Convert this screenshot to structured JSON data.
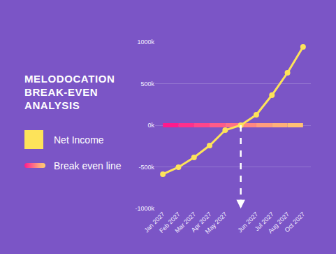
{
  "chart_data": {
    "type": "line",
    "title": "MELODOCATION BREAK-EVEN ANALYSIS",
    "categories": [
      "Jan 2027",
      "Feb 2027",
      "Mar 2027",
      "Apr 2027",
      "May 2027",
      null,
      "Jun 2027",
      "Jul 2027",
      "Aug 2027",
      "Oct 2027"
    ],
    "series": [
      {
        "name": "Net Income",
        "color": "#fde35a",
        "marker": "circle",
        "values": [
          -588000,
          -504000,
          -387000,
          -244000,
          -59000,
          0,
          126000,
          361000,
          630000,
          941000
        ]
      },
      {
        "name": "Break even line",
        "line_style": "solid",
        "colors": [
          "#ff1a8c",
          "#ff2f8c",
          "#ff458b",
          "#ff5b89",
          "#ff7186",
          "#ff8782",
          "#ff9d7e",
          "#ffb079",
          "#ffc074",
          "#ffcf70"
        ],
        "values": [
          0,
          0,
          0,
          0,
          0,
          0,
          0,
          0,
          0,
          0
        ]
      }
    ],
    "ylim": [
      -1000000,
      1000000
    ],
    "yticks": [
      {
        "value": -1000000,
        "label": "-1000k"
      },
      {
        "value": -500000,
        "label": "-500k"
      },
      {
        "value": 0,
        "label": "0k"
      },
      {
        "value": 500000,
        "label": "500k"
      },
      {
        "value": 1000000,
        "label": "1000k"
      }
    ],
    "grid": true,
    "legend": "left"
  }
}
